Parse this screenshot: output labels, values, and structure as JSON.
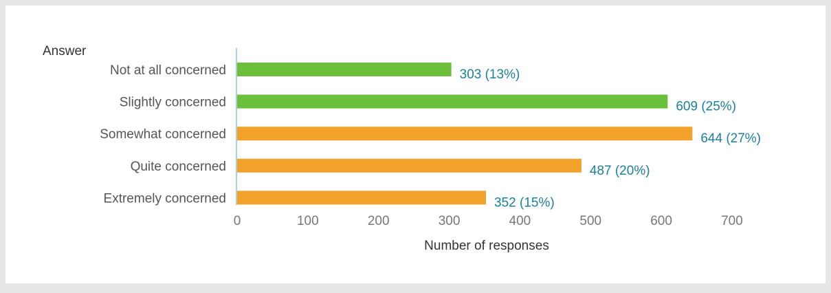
{
  "chart_data": {
    "type": "bar",
    "orientation": "horizontal",
    "ylabel": "Answer",
    "xlabel": "Number of responses",
    "categories": [
      "Not at all concerned",
      "Slightly concerned",
      "Somewhat concerned",
      "Quite concerned",
      "Extremely concerned"
    ],
    "values": [
      303,
      609,
      644,
      487,
      352
    ],
    "data_labels": [
      "303 (13%)",
      "609 (25%)",
      "644 (27%)",
      "487 (20%)",
      "352 (15%)"
    ],
    "bar_colors": [
      "#6cbf3a",
      "#6cbf3a",
      "#f2a12b",
      "#f2a12b",
      "#f2a12b"
    ],
    "label_color": "#1a7fa0",
    "xlim": [
      0,
      700
    ],
    "xticks": [
      0,
      100,
      200,
      300,
      400,
      500,
      600,
      700
    ],
    "grid": false
  }
}
